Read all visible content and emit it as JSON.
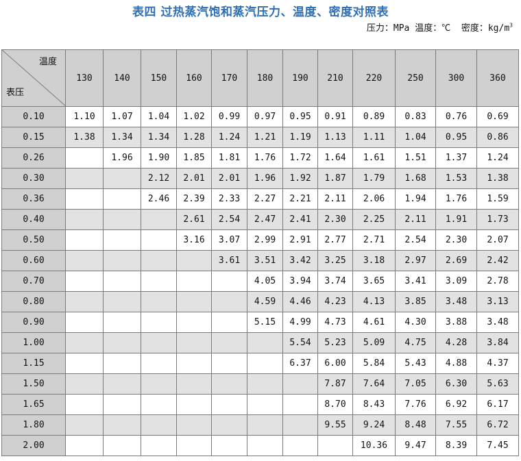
{
  "title": "表四 过热蒸汽饱和蒸汽压力、温度、密度对照表",
  "units": {
    "pressure": "压力：MPa",
    "temperature": "温度：℃",
    "density": "密度：kg/m",
    "density_sup": "3"
  },
  "table": {
    "corner_temp": "温度",
    "corner_pressure": "表压",
    "temperatures": [
      "130",
      "140",
      "150",
      "160",
      "170",
      "180",
      "190",
      "210",
      "220",
      "250",
      "300",
      "360"
    ],
    "rows": [
      {
        "p": "0.10",
        "v": [
          "1.10",
          "1.07",
          "1.04",
          "1.02",
          "0.99",
          "0.97",
          "0.95",
          "0.91",
          "0.89",
          "0.83",
          "0.76",
          "0.69"
        ]
      },
      {
        "p": "0.15",
        "v": [
          "1.38",
          "1.34",
          "1.34",
          "1.28",
          "1.24",
          "1.21",
          "1.19",
          "1.13",
          "1.11",
          "1.04",
          "0.95",
          "0.86"
        ]
      },
      {
        "p": "0.26",
        "v": [
          "",
          "1.96",
          "1.90",
          "1.85",
          "1.81",
          "1.76",
          "1.72",
          "1.64",
          "1.61",
          "1.51",
          "1.37",
          "1.24"
        ]
      },
      {
        "p": "0.30",
        "v": [
          "",
          "",
          "2.12",
          "2.01",
          "2.01",
          "1.96",
          "1.92",
          "1.87",
          "1.79",
          "1.68",
          "1.53",
          "1.38"
        ]
      },
      {
        "p": "0.36",
        "v": [
          "",
          "",
          "2.46",
          "2.39",
          "2.33",
          "2.27",
          "2.21",
          "2.11",
          "2.06",
          "1.94",
          "1.76",
          "1.59"
        ]
      },
      {
        "p": "0.40",
        "v": [
          "",
          "",
          "",
          "2.61",
          "2.54",
          "2.47",
          "2.41",
          "2.30",
          "2.25",
          "2.11",
          "1.91",
          "1.73"
        ]
      },
      {
        "p": "0.50",
        "v": [
          "",
          "",
          "",
          "3.16",
          "3.07",
          "2.99",
          "2.91",
          "2.77",
          "2.71",
          "2.54",
          "2.30",
          "2.07"
        ]
      },
      {
        "p": "0.60",
        "v": [
          "",
          "",
          "",
          "",
          "3.61",
          "3.51",
          "3.42",
          "3.25",
          "3.18",
          "2.97",
          "2.69",
          "2.42"
        ]
      },
      {
        "p": "0.70",
        "v": [
          "",
          "",
          "",
          "",
          "",
          "4.05",
          "3.94",
          "3.74",
          "3.65",
          "3.41",
          "3.09",
          "2.78"
        ]
      },
      {
        "p": "0.80",
        "v": [
          "",
          "",
          "",
          "",
          "",
          "4.59",
          "4.46",
          "4.23",
          "4.13",
          "3.85",
          "3.48",
          "3.13"
        ]
      },
      {
        "p": "0.90",
        "v": [
          "",
          "",
          "",
          "",
          "",
          "5.15",
          "4.99",
          "4.73",
          "4.61",
          "4.30",
          "3.88",
          "3.48"
        ]
      },
      {
        "p": "1.00",
        "v": [
          "",
          "",
          "",
          "",
          "",
          "",
          "5.54",
          "5.23",
          "5.09",
          "4.75",
          "4.28",
          "3.84"
        ]
      },
      {
        "p": "1.15",
        "v": [
          "",
          "",
          "",
          "",
          "",
          "",
          "6.37",
          "6.00",
          "5.84",
          "5.43",
          "4.88",
          "4.37"
        ]
      },
      {
        "p": "1.50",
        "v": [
          "",
          "",
          "",
          "",
          "",
          "",
          "",
          "7.87",
          "7.64",
          "7.05",
          "6.30",
          "5.63"
        ]
      },
      {
        "p": "1.65",
        "v": [
          "",
          "",
          "",
          "",
          "",
          "",
          "",
          "8.70",
          "8.43",
          "7.76",
          "6.92",
          "6.17"
        ]
      },
      {
        "p": "1.80",
        "v": [
          "",
          "",
          "",
          "",
          "",
          "",
          "",
          "9.55",
          "9.24",
          "8.48",
          "7.55",
          "6.72"
        ]
      },
      {
        "p": "2.00",
        "v": [
          "",
          "",
          "",
          "",
          "",
          "",
          "",
          "",
          "10.36",
          "9.47",
          "8.39",
          "7.45"
        ]
      }
    ]
  }
}
